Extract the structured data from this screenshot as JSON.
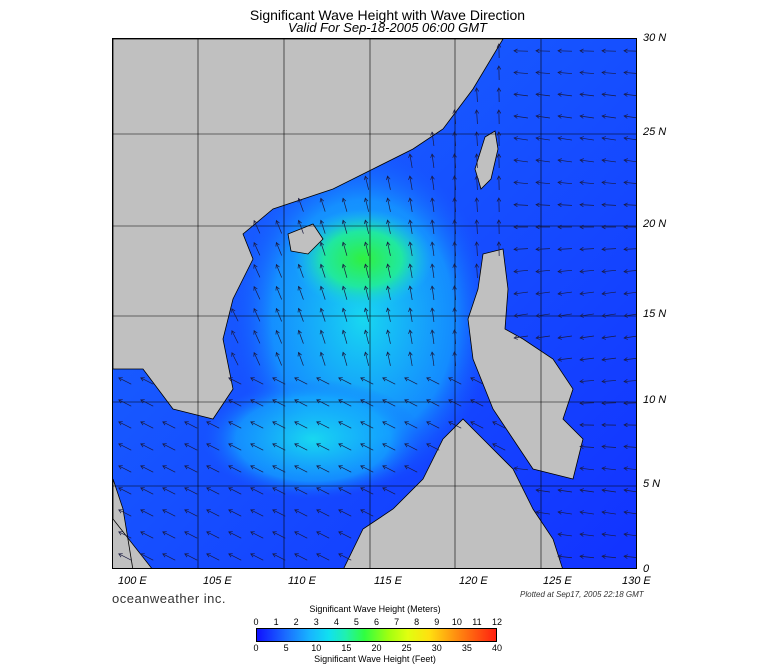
{
  "title": "Significant Wave Height with Wave Direction",
  "subtitle": "Valid For Sep-18-2005 06:00 GMT",
  "lat_labels": [
    "30 N",
    "25 N",
    "20 N",
    "15 N",
    "10 N",
    "5 N",
    "0"
  ],
  "lon_labels": [
    "100 E",
    "105 E",
    "110 E",
    "115 E",
    "120 E",
    "125 E",
    "130 E"
  ],
  "brand": "oceanweather inc.",
  "plotted": "Plotted at Sep17, 2005 22:18 GMT",
  "colorbar": {
    "meters_title": "Significant Wave Height (Meters)",
    "feet_title": "Significant Wave Height (Feet)",
    "meters_ticks": [
      "0",
      "1",
      "2",
      "3",
      "4",
      "5",
      "6",
      "7",
      "8",
      "9",
      "10",
      "11",
      "12"
    ],
    "feet_ticks": [
      "0",
      "5",
      "10",
      "15",
      "20",
      "25",
      "30",
      "35",
      "40"
    ]
  },
  "colors": {
    "land": "#c0c0c0",
    "sea_low": "#1010ff",
    "sea_high": "#30ff40",
    "arrow": "#1a1a40"
  }
}
